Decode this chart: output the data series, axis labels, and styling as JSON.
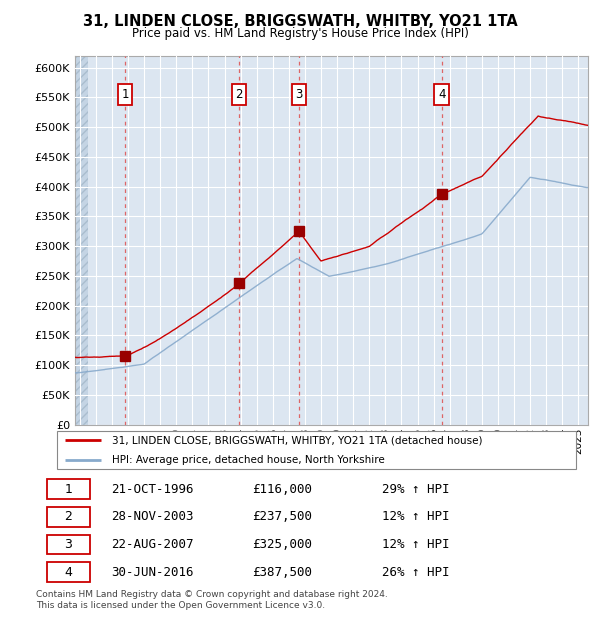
{
  "title": "31, LINDEN CLOSE, BRIGGSWATH, WHITBY, YO21 1TA",
  "subtitle": "Price paid vs. HM Land Registry's House Price Index (HPI)",
  "ylim": [
    0,
    620000
  ],
  "yticks": [
    0,
    50000,
    100000,
    150000,
    200000,
    250000,
    300000,
    350000,
    400000,
    450000,
    500000,
    550000,
    600000
  ],
  "xlim_start": 1993.7,
  "xlim_end": 2025.6,
  "plot_bg_color": "#dce6f1",
  "grid_color": "#ffffff",
  "sale_dates": [
    1996.81,
    2003.91,
    2007.64,
    2016.5
  ],
  "sale_prices": [
    116000,
    237500,
    325000,
    387500
  ],
  "sale_labels": [
    "1",
    "2",
    "3",
    "4"
  ],
  "vline_color": "#dd6666",
  "dot_color": "#990000",
  "price_line_color": "#cc0000",
  "hpi_line_color": "#88aacc",
  "legend_label_price": "31, LINDEN CLOSE, BRIGGSWATH, WHITBY, YO21 1TA (detached house)",
  "legend_label_hpi": "HPI: Average price, detached house, North Yorkshire",
  "table_entries": [
    [
      "1",
      "21-OCT-1996",
      "£116,000",
      "29% ↑ HPI"
    ],
    [
      "2",
      "28-NOV-2003",
      "£237,500",
      "12% ↑ HPI"
    ],
    [
      "3",
      "22-AUG-2007",
      "£325,000",
      "12% ↑ HPI"
    ],
    [
      "4",
      "30-JUN-2016",
      "£387,500",
      "26% ↑ HPI"
    ]
  ],
  "footer": "Contains HM Land Registry data © Crown copyright and database right 2024.\nThis data is licensed under the Open Government Licence v3.0."
}
